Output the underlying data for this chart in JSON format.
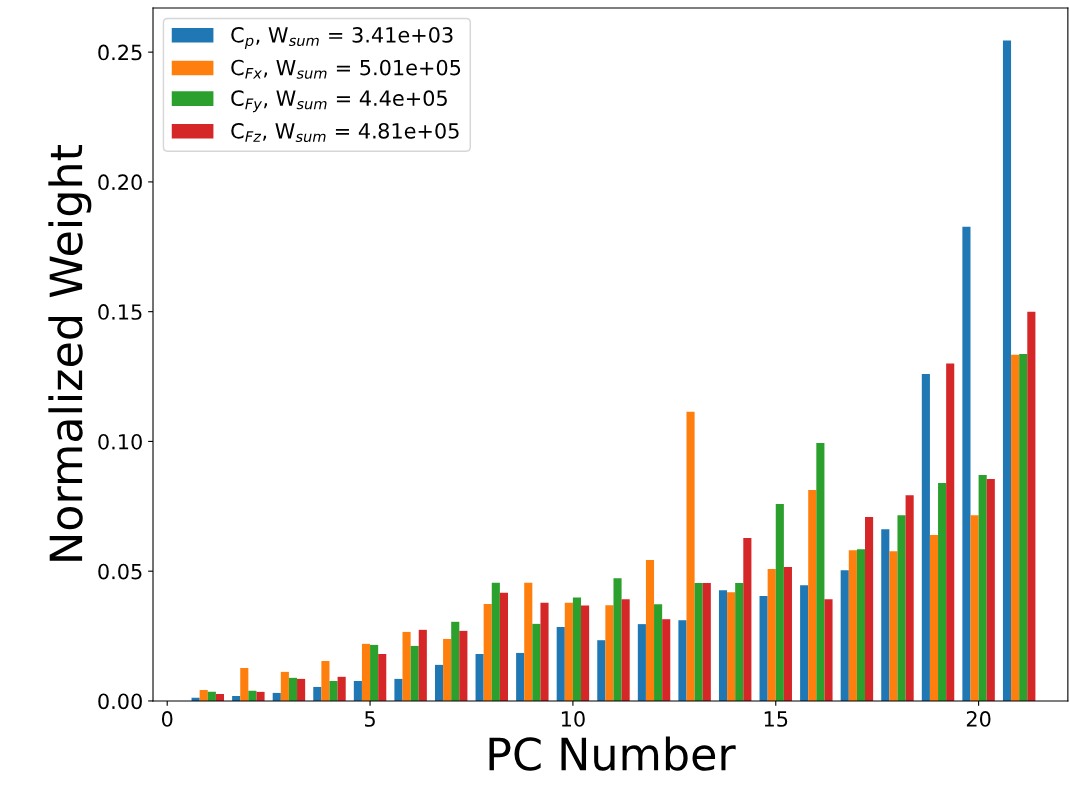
{
  "chart_data": {
    "type": "bar",
    "xlabel": "PC Number",
    "ylabel": "Normalized Weight",
    "x": [
      1,
      2,
      3,
      4,
      5,
      6,
      7,
      8,
      9,
      10,
      11,
      12,
      13,
      14,
      15,
      16,
      17,
      18,
      19,
      20,
      21
    ],
    "series": [
      {
        "name": "C$_{p}$, W$_{sum}$ = 3.41e+03",
        "color": "#1f77b4",
        "values": [
          0.0012,
          0.0019,
          0.0031,
          0.0054,
          0.0077,
          0.0085,
          0.0139,
          0.0181,
          0.0185,
          0.0285,
          0.0234,
          0.0296,
          0.0311,
          0.0427,
          0.0404,
          0.0446,
          0.0504,
          0.0662,
          0.126,
          0.1827,
          0.2545
        ]
      },
      {
        "name": "C$_{Fx}$, W$_{sum}$ = 5.01e+05",
        "color": "#ff7f0e",
        "values": [
          0.0042,
          0.0127,
          0.0112,
          0.0154,
          0.022,
          0.0266,
          0.0239,
          0.0374,
          0.0455,
          0.0378,
          0.0369,
          0.0543,
          0.1114,
          0.0419,
          0.0508,
          0.0813,
          0.0581,
          0.0577,
          0.0639,
          0.0716,
          0.1334
        ]
      },
      {
        "name": "C$_{Fy}$, W$_{sum}$ = 4.4e+05",
        "color": "#2ca02c",
        "values": [
          0.0035,
          0.0039,
          0.0089,
          0.0077,
          0.0216,
          0.0212,
          0.0305,
          0.0455,
          0.0297,
          0.0399,
          0.0473,
          0.0373,
          0.0454,
          0.0454,
          0.0759,
          0.0994,
          0.0585,
          0.0716,
          0.084,
          0.0871,
          0.1337
        ]
      },
      {
        "name": "C$_{Fz}$, W$_{sum}$ = 4.81e+05",
        "color": "#d62728",
        "values": [
          0.0027,
          0.0035,
          0.0085,
          0.0093,
          0.0181,
          0.0274,
          0.027,
          0.0417,
          0.0378,
          0.0368,
          0.0392,
          0.0315,
          0.0454,
          0.0628,
          0.0516,
          0.0392,
          0.0709,
          0.0793,
          0.13,
          0.0855,
          0.15
        ]
      }
    ],
    "xlim": [
      -0.35,
      22.2
    ],
    "xticks": [
      0,
      5,
      10,
      15,
      20
    ],
    "ylim": [
      0,
      0.267
    ],
    "yticks": [
      {
        "value": 0,
        "label": "0.00"
      },
      {
        "value": 0.05,
        "label": "0.05"
      },
      {
        "value": 0.1,
        "label": "0.10"
      },
      {
        "value": 0.15,
        "label": "0.15"
      },
      {
        "value": 0.2,
        "label": "0.20"
      },
      {
        "value": 0.25,
        "label": "0.25"
      }
    ],
    "legend": "top left",
    "grid": false
  }
}
